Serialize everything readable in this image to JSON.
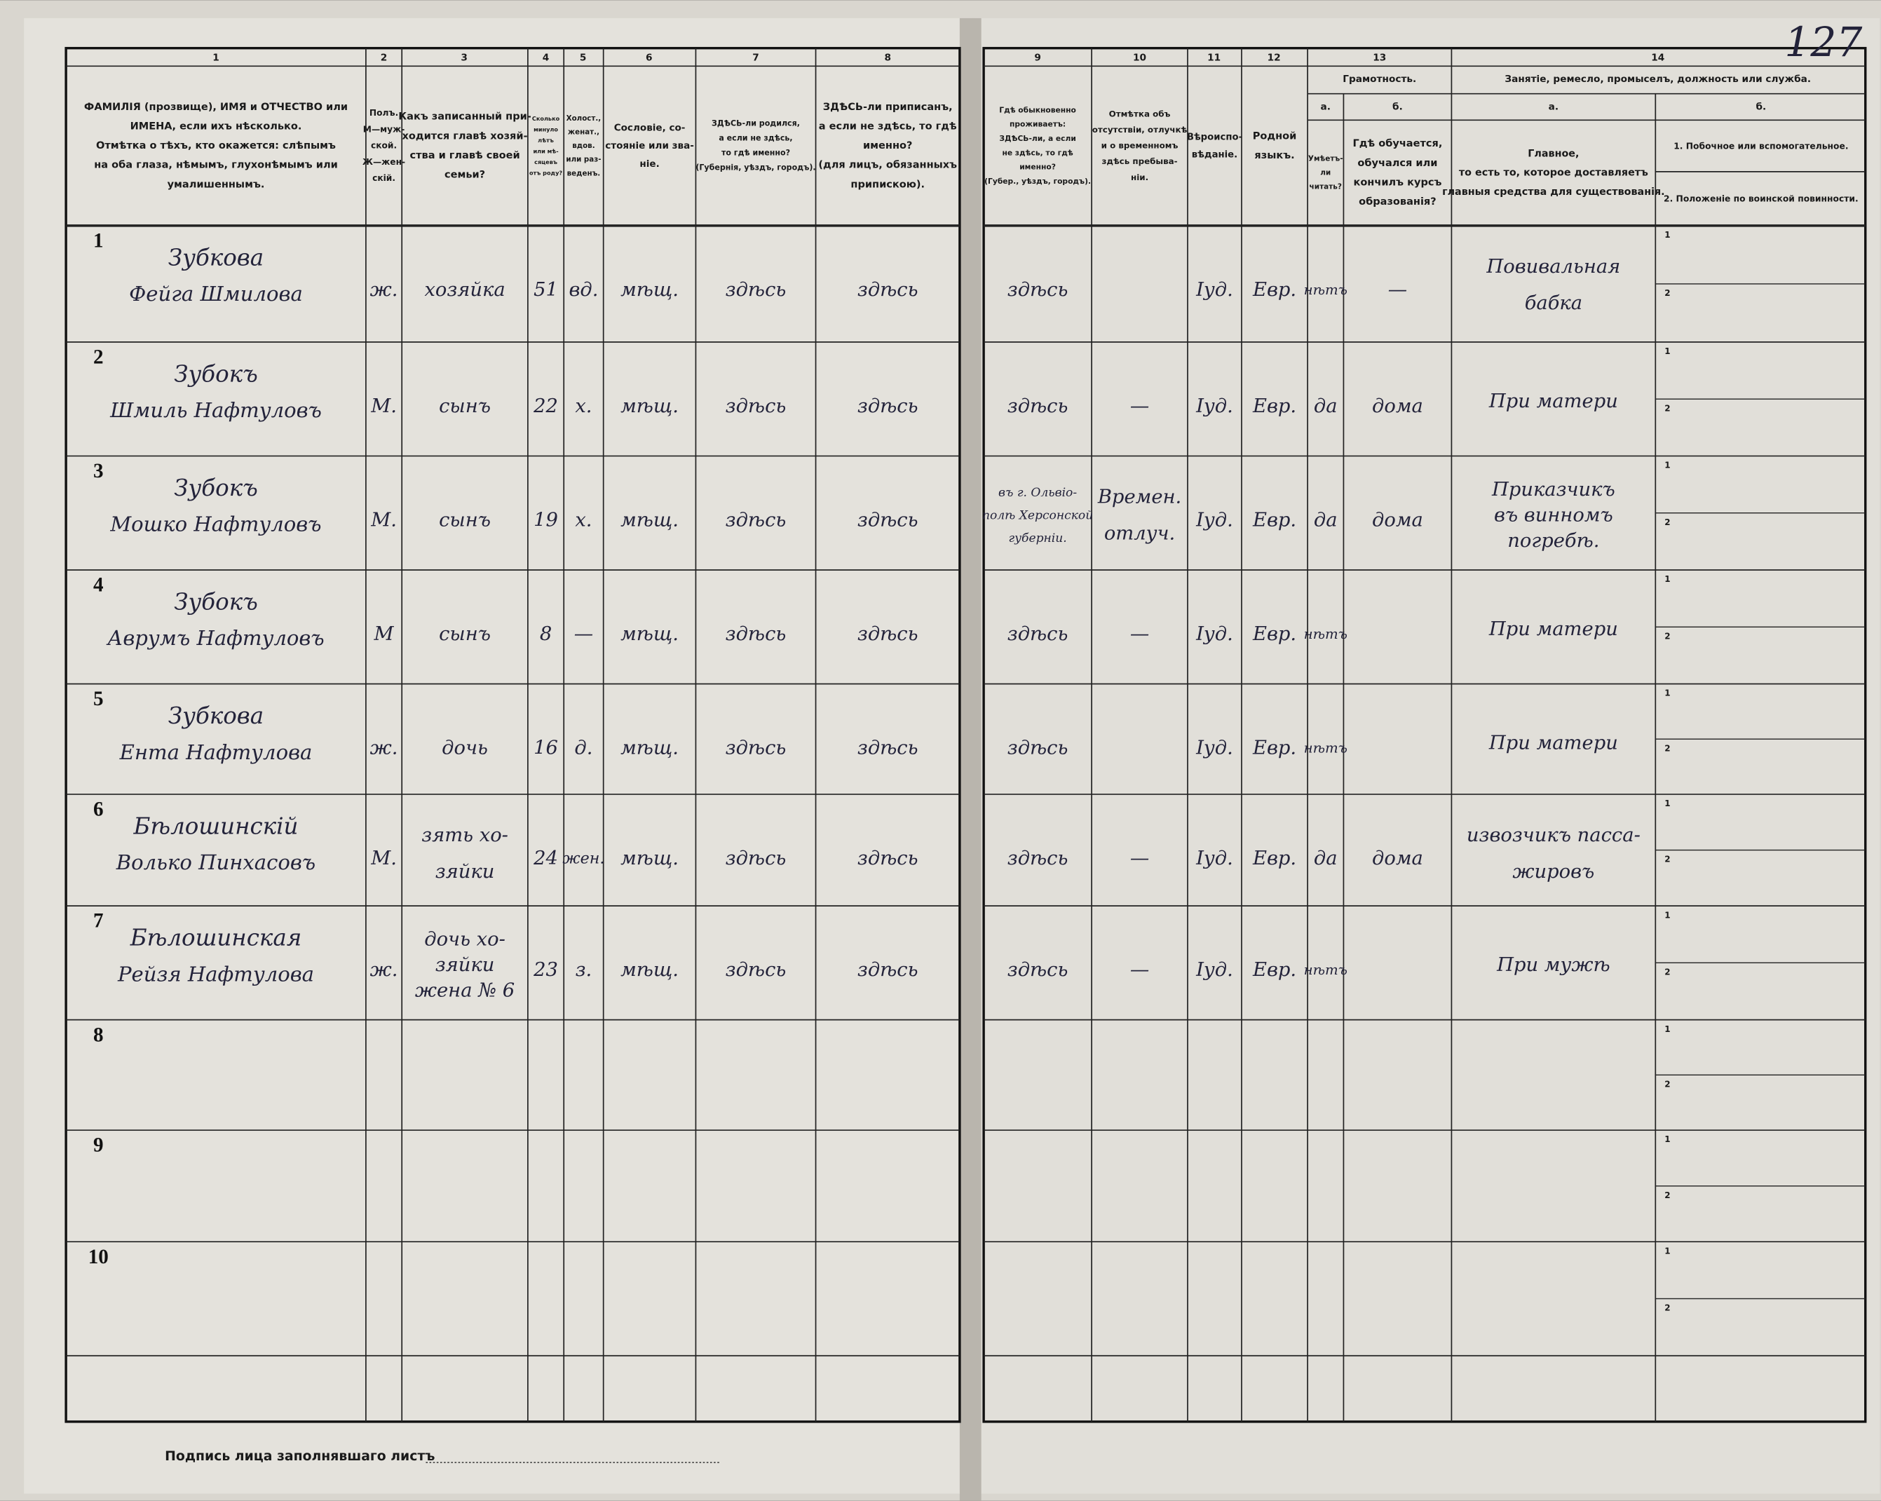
{
  "header": {
    "page_number": "127",
    "column_numbers": [
      "1",
      "2",
      "3",
      "4",
      "5",
      "6",
      "7",
      "8",
      "9",
      "10",
      "11",
      "12",
      "13",
      "14"
    ],
    "columns": [
      [
        "ФАМИЛІЯ (прозвище), ИМЯ и ОТЧЕСТВО или",
        "ИМЕНА, если ихъ нѣсколько.",
        "Отмѣтка о тѣхъ, кто окажется: слѣпымъ",
        "на оба глаза, нѣмымъ, глухонѣмымъ или",
        "умалишеннымъ."
      ],
      [
        "Полъ.",
        "М—муж-",
        "ской.",
        "Ж—жен-",
        "скій."
      ],
      [
        "Какъ записанный при-",
        "ходится главѣ хозяй-",
        "ства и главѣ своей",
        "семьи?"
      ],
      [
        "Сколько",
        "минуло",
        "лѣтъ",
        "или мѣ-",
        "сяцевъ",
        "отъ роду?"
      ],
      [
        "Холост.,",
        "женат.,",
        "вдов.",
        "или раз-",
        "веденъ."
      ],
      [
        "Сословіе, со-",
        "стояніе или зва-",
        "ніе."
      ],
      [
        "ЗДѢСЬ-ли родился,",
        "а если не здѣсь,",
        "то гдѣ именно?",
        "(Губернія, уѣздъ, городъ)."
      ],
      [
        "ЗДѢСЬ-ли приписанъ,",
        "а если не здѣсь, то гдѣ",
        "именно?",
        "(для лицъ, обязанныхъ",
        "припискою)."
      ],
      [
        "Гдѣ обыкновенно",
        "проживаетъ:",
        "ЗДѢСЬ-ли, а если",
        "не здѣсь, то гдѣ",
        "именно?",
        "(Губер., уѣздъ, городъ)."
      ],
      [
        "Отмѣтка объ",
        "отсутствіи, отлучкѣ",
        "и о временномъ",
        "здѣсь пребыва-",
        "ніи."
      ],
      [
        "Вѣроиспо-",
        "вѣданіе."
      ],
      [
        "Родной",
        "языкъ."
      ]
    ],
    "literacy": {
      "title": "Грамотность.",
      "a": {
        "label": "а.",
        "lines": [
          "Умѣетъ-",
          "ли",
          "читать?"
        ]
      },
      "b": {
        "label": "б.",
        "lines": [
          "Гдѣ обучается,",
          "обучался или",
          "кончилъ курсъ",
          "образованія?"
        ]
      }
    },
    "occupation": {
      "title": "Занятіе, ремесло, промыселъ, должность или служба.",
      "a": {
        "label": "а.",
        "lines": [
          "Главное,",
          "то есть то, которое доставляетъ",
          "главныя средства для существованія."
        ]
      },
      "b": {
        "label": "б.",
        "lines": [
          "1. Побочное или вспомогательное.",
          "2. Положеніе по воинской повинности."
        ]
      }
    }
  },
  "row_numbers": [
    "1",
    "2",
    "3",
    "4",
    "5",
    "6",
    "7",
    "8",
    "9",
    "10"
  ],
  "subrow_labels": [
    "1",
    "2"
  ],
  "records": [
    {
      "name": [
        "Зубкова",
        "Фейга Шмилова"
      ],
      "sex": "ж.",
      "relation": "хозяйка",
      "age": "51",
      "marital": "вд.",
      "estate": "мѣщ.",
      "born": "здѣсь",
      "registered": "здѣсь",
      "residence": "здѣсь",
      "religion": "Іуд.",
      "language": "Евр.",
      "literate": "нѣтъ",
      "education": "—",
      "occupation": [
        "Повивальная",
        "бабка"
      ]
    },
    {
      "name": [
        "Зубокъ",
        "Шмиль Нафтуловъ"
      ],
      "sex": "М.",
      "relation": "сынъ",
      "age": "22",
      "marital": "х.",
      "estate": "мѣщ.",
      "born": "здѣсь",
      "registered": "здѣсь",
      "residence": "здѣсь",
      "absence": "—",
      "religion": "Іуд.",
      "language": "Евр.",
      "literate": "да",
      "education": "дома",
      "occupation": [
        "При матери"
      ]
    },
    {
      "name": [
        "Зубокъ",
        "Мошко Нафтуловъ"
      ],
      "sex": "М.",
      "relation": "сынъ",
      "age": "19",
      "marital": "х.",
      "estate": "мѣщ.",
      "born": "здѣсь",
      "registered": "здѣсь",
      "residence": [
        "въ г. Ольвіо-",
        "полѣ Херсонской",
        "губерніи."
      ],
      "absence": [
        "Времен.",
        "отлуч."
      ],
      "religion": "Іуд.",
      "language": "Евр.",
      "literate": "да",
      "education": "дома",
      "occupation": [
        "Приказчикъ",
        "въ винномъ",
        "погребѣ."
      ]
    },
    {
      "name": [
        "Зубокъ",
        "Аврумъ Нафтуловъ"
      ],
      "sex": "М",
      "relation": "сынъ",
      "age": "8",
      "marital": "—",
      "estate": "мѣщ.",
      "born": "здѣсь",
      "registered": "здѣсь",
      "residence": "здѣсь",
      "absence": "—",
      "religion": "Іуд.",
      "language": "Евр.",
      "literate": "нѣтъ",
      "occupation": [
        "При матери"
      ]
    },
    {
      "name": [
        "Зубкова",
        "Ента Нафтулова"
      ],
      "sex": "ж.",
      "relation": "дочь",
      "age": "16",
      "marital": "д.",
      "estate": "мѣщ.",
      "born": "здѣсь",
      "registered": "здѣсь",
      "residence": "здѣсь",
      "religion": "Іуд.",
      "language": "Евр.",
      "literate": "нѣтъ",
      "occupation": [
        "При матери"
      ]
    },
    {
      "name": [
        "Бѣлошинскій",
        "Волько Пинхасовъ"
      ],
      "sex": "М.",
      "relation": [
        "зять хо-",
        "зяйки"
      ],
      "age": "24",
      "marital": "жен.",
      "estate": "мѣщ.",
      "born": "здѣсь",
      "registered": "здѣсь",
      "residence": "здѣсь",
      "absence": "—",
      "religion": "Іуд.",
      "language": "Евр.",
      "literate": "да",
      "education": "дома",
      "occupation": [
        "извозчикъ пасса-",
        "жировъ"
      ]
    },
    {
      "name": [
        "Бѣлошинская",
        "Рейзя Нафтулова"
      ],
      "sex": "ж.",
      "relation": [
        "дочь хо-",
        "зяйки",
        "жена № 6"
      ],
      "age": "23",
      "marital": "з.",
      "estate": "мѣщ.",
      "born": "здѣсь",
      "registered": "здѣсь",
      "residence": "здѣсь",
      "absence": "—",
      "religion": "Іуд.",
      "language": "Евр.",
      "literate": "нѣтъ",
      "occupation": [
        "При мужѣ"
      ]
    }
  ],
  "footer": {
    "signature": "Подпись лица заполнявшаго листъ"
  }
}
